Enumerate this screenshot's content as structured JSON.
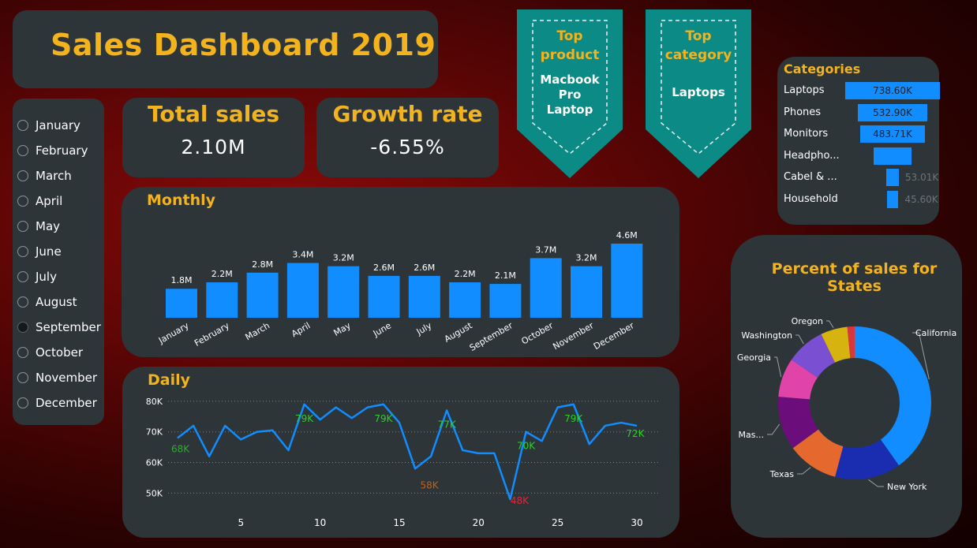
{
  "title": "Sales Dashboard 2019",
  "months": [
    {
      "label": "January",
      "selected": false
    },
    {
      "label": "February",
      "selected": false
    },
    {
      "label": "March",
      "selected": false
    },
    {
      "label": "April",
      "selected": false
    },
    {
      "label": "May",
      "selected": false
    },
    {
      "label": "June",
      "selected": false
    },
    {
      "label": "July",
      "selected": false
    },
    {
      "label": "August",
      "selected": false
    },
    {
      "label": "September",
      "selected": true
    },
    {
      "label": "October",
      "selected": false
    },
    {
      "label": "November",
      "selected": false
    },
    {
      "label": "December",
      "selected": false
    }
  ],
  "kpis": {
    "total_sales": {
      "label": "Total sales",
      "value": "2.10M"
    },
    "growth_rate": {
      "label": "Growth rate",
      "value": "-6.55%"
    }
  },
  "top_product": {
    "heading_line1": "Top",
    "heading_line2": "product",
    "value_lines": [
      "Macbook",
      "Pro",
      "Laptop"
    ]
  },
  "top_category": {
    "heading_line1": "Top",
    "heading_line2": "category",
    "value": "Laptops"
  },
  "colors": {
    "bar": "#118dff",
    "gold": "#f2b31e",
    "panel": "#2d3539",
    "banner": "#0b8a86",
    "label_high": "#2bd12b",
    "label_low": "#c1621b",
    "label_min": "#e0283a",
    "label_first": "#3aa43a"
  },
  "categories": {
    "title": "Categories",
    "items": [
      {
        "label": "Laptops",
        "value": 738.6,
        "value_label": "738.60K"
      },
      {
        "label": "Phones",
        "value": 532.9,
        "value_label": "532.90K"
      },
      {
        "label": "Monitors",
        "value": 483.71,
        "value_label": "483.71K"
      },
      {
        "label": "Headpho...",
        "value": 260.0,
        "value_label": ""
      },
      {
        "label": "Cabel & ...",
        "value": 53.01,
        "value_label": "53.01K"
      },
      {
        "label": "Household",
        "value": 45.6,
        "value_label": "45.60K"
      }
    ]
  },
  "chart_data": [
    {
      "type": "bar",
      "title": "Monthly",
      "categories": [
        "January",
        "February",
        "March",
        "April",
        "May",
        "June",
        "July",
        "August",
        "September",
        "October",
        "November",
        "December"
      ],
      "values": [
        1.8,
        2.2,
        2.8,
        3.4,
        3.2,
        2.6,
        2.6,
        2.2,
        2.1,
        3.7,
        3.2,
        4.6
      ],
      "value_labels": [
        "1.8M",
        "2.2M",
        "2.8M",
        "3.4M",
        "3.2M",
        "2.6M",
        "2.6M",
        "2.2M",
        "2.1M",
        "3.7M",
        "3.2M",
        "4.6M"
      ],
      "ylim": [
        0,
        4.6
      ],
      "grid": false
    },
    {
      "type": "line",
      "title": "Daily",
      "x": [
        1,
        2,
        3,
        4,
        5,
        6,
        7,
        8,
        9,
        10,
        11,
        12,
        13,
        14,
        15,
        16,
        17,
        18,
        19,
        20,
        21,
        22,
        23,
        24,
        25,
        26,
        27,
        28,
        29,
        30
      ],
      "y": [
        68,
        72,
        62,
        72,
        67.5,
        70,
        70.5,
        64,
        79,
        74,
        78,
        74.5,
        78,
        79,
        73,
        58,
        62,
        77,
        64,
        63,
        63,
        48,
        70,
        67,
        78,
        79,
        66,
        72,
        73,
        72
      ],
      "y_ticks": [
        "50K",
        "60K",
        "70K",
        "80K"
      ],
      "y_tick_values": [
        50,
        60,
        70,
        80
      ],
      "x_ticks": [
        "5",
        "10",
        "15",
        "20",
        "25",
        "30"
      ],
      "x_tick_values": [
        5,
        10,
        15,
        20,
        25,
        30
      ],
      "ylim": [
        47,
        81
      ],
      "xlim": [
        1,
        30
      ],
      "grid": true,
      "annotations": [
        {
          "x": 1,
          "y": 68,
          "text": "68K",
          "kind": "first"
        },
        {
          "x": 9,
          "y": 79,
          "text": "79K",
          "kind": "high"
        },
        {
          "x": 14,
          "y": 79,
          "text": "79K",
          "kind": "high"
        },
        {
          "x": 16,
          "y": 58,
          "text": "58K",
          "kind": "low"
        },
        {
          "x": 18,
          "y": 77,
          "text": "77K",
          "kind": "high"
        },
        {
          "x": 22,
          "y": 48,
          "text": "48K",
          "kind": "min"
        },
        {
          "x": 23,
          "y": 70,
          "text": "70K",
          "kind": "high"
        },
        {
          "x": 26,
          "y": 79,
          "text": "79K",
          "kind": "high"
        },
        {
          "x": 30,
          "y": 72,
          "text": "72K",
          "kind": "high"
        }
      ],
      "line_color": "#118dff"
    },
    {
      "type": "pie",
      "title": "Percent of sales for States",
      "slices": [
        {
          "label": "California",
          "value": 39.0,
          "color": "#118dff"
        },
        {
          "label": "New York",
          "value": 13.5,
          "color": "#1a2db0"
        },
        {
          "label": "Texas",
          "value": 10.5,
          "color": "#e5692f"
        },
        {
          "label": "Mas...",
          "value": 11.0,
          "color": "#6b0e7c"
        },
        {
          "label": "Georgia",
          "value": 8.0,
          "color": "#e044a8"
        },
        {
          "label": "Washington",
          "value": 8.0,
          "color": "#7a4fd1"
        },
        {
          "label": "Oregon",
          "value": 5.5,
          "color": "#d6b30f"
        },
        {
          "label": "",
          "value": 1.5,
          "color": "#d8373e"
        }
      ]
    }
  ]
}
